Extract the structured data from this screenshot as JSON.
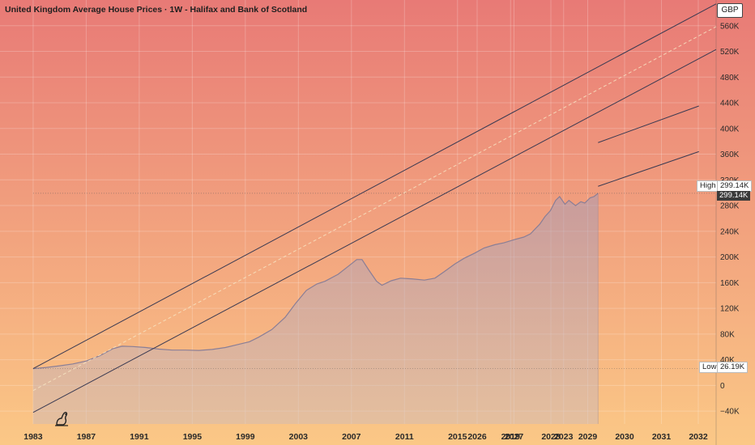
{
  "title": "United Kingdom Average House Prices · 1W - Halifax and Bank of Scotland",
  "currency": "GBP",
  "high": {
    "label": "High",
    "value": "299.14K"
  },
  "low": {
    "label": "Low",
    "value": "26.19K"
  },
  "last_price": "299.14K",
  "colors": {
    "bg_top": "#e87a76",
    "bg_bottom": "#fbc886",
    "channel": "#3a3a52",
    "midline": "#f7e6c4",
    "area_fill": "#b0a2b8",
    "area_line": "#8a7e96"
  },
  "chart_data": {
    "type": "area",
    "title": "United Kingdom Average House Prices · 1W - Halifax and Bank of Scotland",
    "xlabel": "",
    "ylabel": "",
    "xlim": [
      1980.5,
      2034.5
    ],
    "ylim": [
      -60000,
      600000
    ],
    "x_ticks": [
      "1983",
      "1987",
      "1991",
      "1995",
      "1999",
      "2003",
      "2007",
      "2011",
      "2015",
      "2019",
      "2023",
      "2026",
      "2027",
      "2028",
      "2029",
      "2030",
      "2031",
      "2032"
    ],
    "y_ticks": [
      "560K",
      "520K",
      "480K",
      "440K",
      "400K",
      "360K",
      "320K",
      "280K",
      "240K",
      "200K",
      "160K",
      "120K",
      "80K",
      "40K",
      "0",
      "−40K"
    ],
    "y_tick_values": [
      560000,
      520000,
      480000,
      440000,
      400000,
      360000,
      320000,
      280000,
      240000,
      200000,
      160000,
      120000,
      80000,
      40000,
      0,
      -40000
    ],
    "series": [
      {
        "x": [
          1983.0,
          1984.0,
          1985.0,
          1986.0,
          1987.0,
          1988.0,
          1989.0,
          1989.7,
          1990.5,
          1991.5,
          1992.5,
          1993.5,
          1994.5,
          1995.5,
          1996.5,
          1997.5,
          1998.5,
          1999.3,
          2000.0,
          2001.0,
          2002.0,
          2002.8,
          2003.6,
          2004.4,
          2005.0,
          2006.0,
          2006.8,
          2007.4,
          2007.8,
          2008.3,
          2008.9,
          2009.3,
          2010.0,
          2010.7,
          2011.5,
          2012.5,
          2013.3,
          2014.0,
          2014.8,
          2015.5,
          2016.3,
          2017.0,
          2017.8,
          2018.5,
          2019.3,
          2020.0,
          2020.5,
          2021.2,
          2021.6,
          2022.0,
          2022.4,
          2022.7,
          2023.1,
          2023.4,
          2023.9,
          2024.3,
          2024.6,
          2025.0,
          2025.3,
          2025.6
        ],
        "values": [
          26190,
          28000,
          30500,
          33500,
          38000,
          46000,
          57000,
          61000,
          60500,
          59000,
          56500,
          55000,
          55000,
          54500,
          56000,
          59000,
          64000,
          68000,
          75000,
          87000,
          106000,
          128000,
          148000,
          158000,
          162000,
          173000,
          186000,
          196000,
          196000,
          180000,
          162000,
          156000,
          163000,
          167000,
          166000,
          164000,
          167000,
          177000,
          189000,
          198000,
          206000,
          214000,
          219000,
          222000,
          227000,
          231000,
          236000,
          251000,
          263000,
          272000,
          288000,
          294000,
          282000,
          288000,
          280000,
          286000,
          284000,
          292000,
          294000,
          299140
        ]
      }
    ],
    "channel_lines": [
      {
        "x": [
          1983.0,
          2034.5
        ],
        "y": [
          26190,
          594000
        ]
      },
      {
        "x": [
          1983.0,
          2034.5
        ],
        "y": [
          -42000,
          523000
        ]
      },
      {
        "x": [
          2025.6,
          2033.2
        ],
        "y": [
          378000,
          435000
        ]
      },
      {
        "x": [
          2025.6,
          2033.2
        ],
        "y": [
          310000,
          364000
        ]
      }
    ],
    "midline": {
      "x": [
        1983.0,
        2034.5
      ],
      "y": [
        -7900,
        558500
      ]
    },
    "series_end_x": 2025.6,
    "high": 299140,
    "low": 26190,
    "grid": true
  }
}
